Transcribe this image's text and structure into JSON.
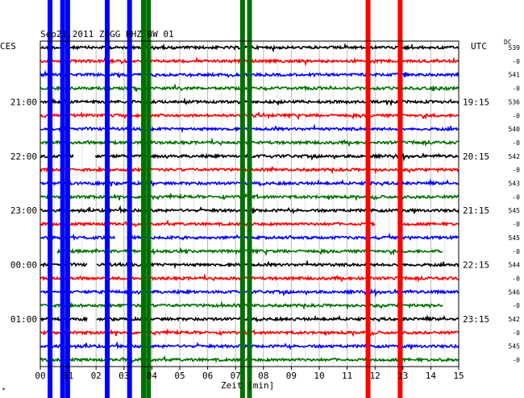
{
  "chart_data": {
    "type": "line",
    "title": "Sep21,2011  ZUGG HHZ BW 01",
    "left_zone_label": "CES",
    "right_zone_label": "UTC",
    "dc_header": "DC",
    "xlabel": "Zeit [min]",
    "xlim": [
      0,
      15
    ],
    "x_ticks": [
      "00",
      "01",
      "02",
      "03",
      "04",
      "05",
      "06",
      "07",
      "08",
      "09",
      "10",
      "11",
      "12",
      "13",
      "14",
      "15"
    ],
    "left_time_labels": [
      "21:00",
      "22:00",
      "23:00",
      "00:00",
      "01:00"
    ],
    "right_time_labels": [
      "19:15",
      "20:15",
      "21:15",
      "22:15",
      "23:15"
    ],
    "dc_values": [
      "539",
      "-0",
      "541",
      "-0",
      "536",
      "-0",
      "540",
      "-0",
      "542",
      "-0",
      "543",
      "-0",
      "545",
      "-0",
      "545",
      "-0",
      "544",
      "-0",
      "546",
      "-0",
      "542",
      "-0",
      "545",
      "-0"
    ],
    "trace_colors": [
      "#000000",
      "#ff0000",
      "#0000ff",
      "#007000"
    ],
    "trace_count": 24,
    "trace_end_min": [
      15,
      15,
      15,
      15,
      15,
      15,
      15,
      15,
      15,
      15,
      15,
      15,
      15,
      15,
      15,
      14.45,
      15,
      15,
      15,
      14.45,
      15,
      15,
      15,
      15
    ],
    "gaps": [
      {
        "trace": 8,
        "from_min": 1.2,
        "to_min": 1.95
      },
      {
        "trace": 14,
        "from_min": 2.7,
        "to_min": 3.1
      },
      {
        "trace": 13,
        "from_min": 12.0,
        "to_min": 12.8
      },
      {
        "trace": 15,
        "from_min": 0,
        "to_min": 0.6
      },
      {
        "trace": 16,
        "from_min": 1.7,
        "to_min": 2.0
      },
      {
        "trace": 20,
        "from_min": 1.7,
        "to_min": 2.0
      }
    ],
    "events": [
      {
        "min": 0.35,
        "color": "#0000ff"
      },
      {
        "min": 0.8,
        "color": "#0000ff"
      },
      {
        "min": 0.98,
        "color": "#0000ff"
      },
      {
        "min": 2.4,
        "color": "#0000ff"
      },
      {
        "min": 3.2,
        "color": "#0000ff"
      },
      {
        "min": 3.7,
        "color": "#007000"
      },
      {
        "min": 3.88,
        "color": "#007000"
      },
      {
        "min": 7.25,
        "color": "#007000"
      },
      {
        "min": 7.5,
        "color": "#007000"
      },
      {
        "min": 11.75,
        "color": "#ff0000"
      },
      {
        "min": 12.9,
        "color": "#ff0000"
      }
    ],
    "grid": true,
    "footer_mark": "*"
  }
}
